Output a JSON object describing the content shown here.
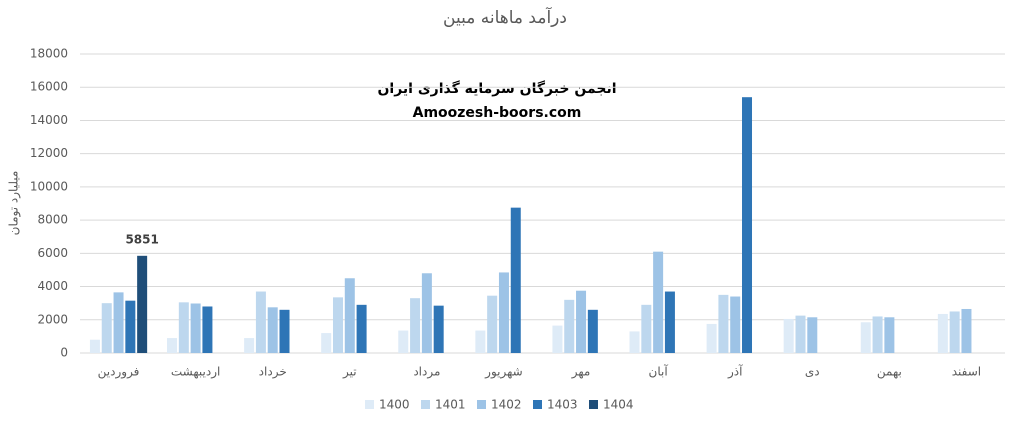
{
  "chart_data": {
    "type": "bar",
    "title": "درآمد ماهانه مبین",
    "y_label": "میلیارد تومان",
    "annotations": [
      "انجمن خبرگان سرمایه گذاری ایران",
      "Amoozesh-boors.com"
    ],
    "categories": [
      "فروردین",
      "اردیبهشت",
      "خرداد",
      "تیر",
      "مرداد",
      "شهریور",
      "مهر",
      "آبان",
      "آذر",
      "دی",
      "بهمن",
      "اسفند"
    ],
    "series": [
      {
        "name": "1400",
        "color": "#deebf7",
        "values": [
          800,
          900,
          900,
          1200,
          1350,
          1350,
          1650,
          1300,
          1750,
          2050,
          1850,
          2350
        ]
      },
      {
        "name": "1401",
        "color": "#bdd7ee",
        "values": [
          3000,
          3050,
          3700,
          3350,
          3300,
          3450,
          3200,
          2900,
          3500,
          2250,
          2200,
          2500
        ]
      },
      {
        "name": "1402",
        "color": "#9dc3e6",
        "values": [
          3650,
          2980,
          2750,
          4500,
          4800,
          4850,
          3750,
          6100,
          3400,
          2150,
          2150,
          2650
        ]
      },
      {
        "name": "1403",
        "color": "#2e75b6",
        "values": [
          3150,
          2800,
          2600,
          2900,
          2850,
          8750,
          2600,
          3700,
          15400,
          null,
          null,
          null
        ]
      },
      {
        "name": "1404",
        "color": "#1f4e79",
        "values": [
          5851,
          null,
          null,
          null,
          null,
          null,
          null,
          null,
          null,
          null,
          null,
          null
        ],
        "show_labels": true
      }
    ],
    "ylim": [
      0,
      18000
    ],
    "yticks": [
      0,
      2000,
      4000,
      6000,
      8000,
      10000,
      12000,
      14000,
      16000,
      18000
    ],
    "grid": true,
    "legend": "bottom"
  }
}
